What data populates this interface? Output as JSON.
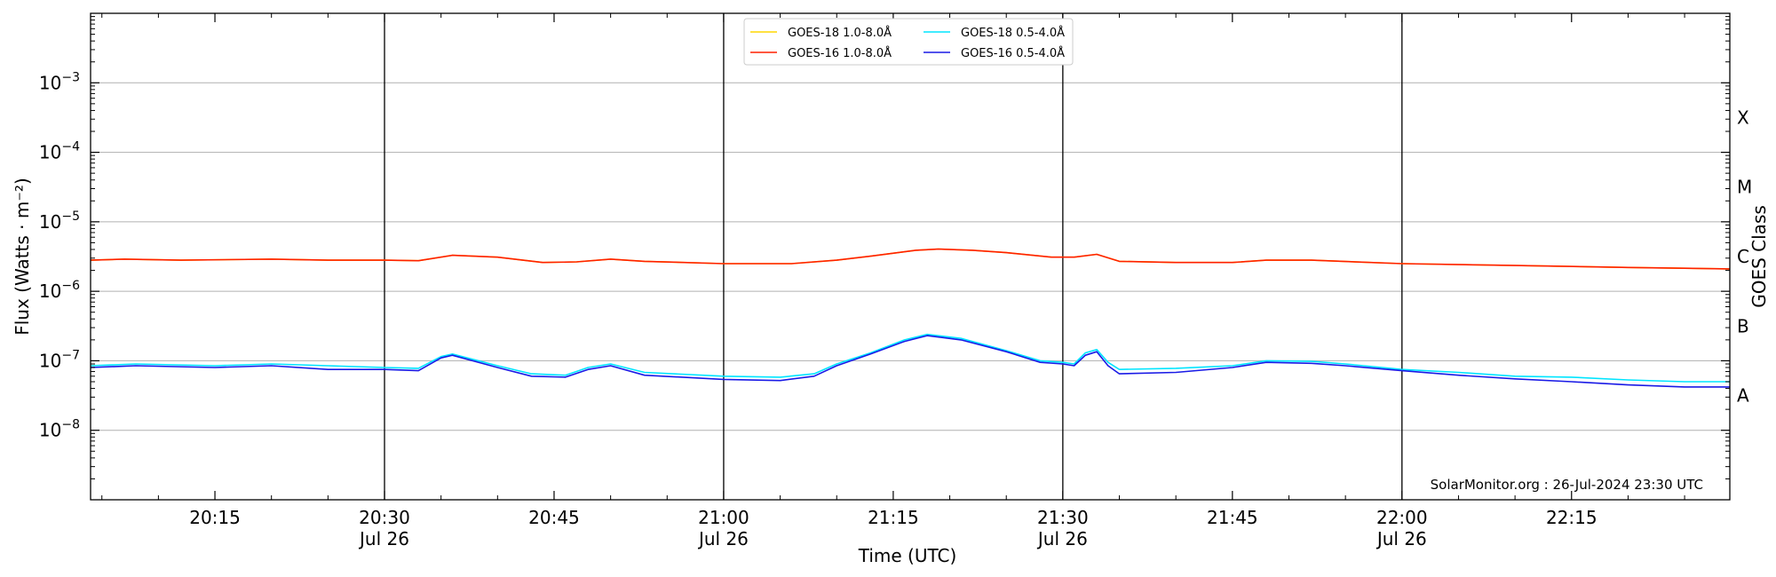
{
  "chart_data": {
    "type": "line",
    "xlabel": "Time (UTC)",
    "ylabel": "Flux (Watts · m⁻²)",
    "y2label": "GOES Class",
    "yscale": "log",
    "ylim": [
      1e-09,
      0.01
    ],
    "xlim": [
      "20:04",
      "22:29"
    ],
    "grid": "horizontal",
    "legend_position": "top-center",
    "credit": "SolarMonitor.org : 26-Jul-2024 23:30 UTC",
    "x_ticks": [
      {
        "time": "20:15",
        "line1": "20:15",
        "line2": ""
      },
      {
        "time": "20:30",
        "line1": "20:30",
        "line2": "Jul 26"
      },
      {
        "time": "20:45",
        "line1": "20:45",
        "line2": ""
      },
      {
        "time": "21:00",
        "line1": "21:00",
        "line2": "Jul 26"
      },
      {
        "time": "21:15",
        "line1": "21:15",
        "line2": ""
      },
      {
        "time": "21:30",
        "line1": "21:30",
        "line2": "Jul 26"
      },
      {
        "time": "21:45",
        "line1": "21:45",
        "line2": ""
      },
      {
        "time": "22:00",
        "line1": "22:00",
        "line2": "Jul 26"
      },
      {
        "time": "22:15",
        "line1": "22:15",
        "line2": ""
      }
    ],
    "vertical_lines": [
      "20:30",
      "21:00",
      "21:30",
      "22:00"
    ],
    "y_ticks": [
      {
        "exp": -8,
        "label": "10",
        "sup": "−8"
      },
      {
        "exp": -7,
        "label": "10",
        "sup": "−7"
      },
      {
        "exp": -6,
        "label": "10",
        "sup": "−6"
      },
      {
        "exp": -5,
        "label": "10",
        "sup": "−5"
      },
      {
        "exp": -4,
        "label": "10",
        "sup": "−4"
      },
      {
        "exp": -3,
        "label": "10",
        "sup": "−3"
      }
    ],
    "goes_classes": [
      {
        "label": "A",
        "exp": -7.5
      },
      {
        "label": "B",
        "exp": -6.5
      },
      {
        "label": "C",
        "exp": -5.5
      },
      {
        "label": "M",
        "exp": -4.5
      },
      {
        "label": "X",
        "exp": -3.5
      }
    ],
    "series": [
      {
        "name": "GOES-18 1.0-8.0Å",
        "color": "#ffd700",
        "points": [
          [
            "20:04",
            2.8e-06
          ],
          [
            "20:07",
            2.9e-06
          ],
          [
            "20:12",
            2.8e-06
          ],
          [
            "20:20",
            2.9e-06
          ],
          [
            "20:25",
            2.8e-06
          ],
          [
            "20:30",
            2.8e-06
          ],
          [
            "20:33",
            2.75e-06
          ],
          [
            "20:36",
            3.3e-06
          ],
          [
            "20:40",
            3.1e-06
          ],
          [
            "20:44",
            2.6e-06
          ],
          [
            "20:47",
            2.65e-06
          ],
          [
            "20:50",
            2.9e-06
          ],
          [
            "20:53",
            2.7e-06
          ],
          [
            "21:00",
            2.5e-06
          ],
          [
            "21:06",
            2.5e-06
          ],
          [
            "21:10",
            2.8e-06
          ],
          [
            "21:13",
            3.2e-06
          ],
          [
            "21:17",
            3.9e-06
          ],
          [
            "21:19",
            4.05e-06
          ],
          [
            "21:22",
            3.9e-06
          ],
          [
            "21:25",
            3.6e-06
          ],
          [
            "21:29",
            3.1e-06
          ],
          [
            "21:31",
            3.1e-06
          ],
          [
            "21:33",
            3.4e-06
          ],
          [
            "21:35",
            2.7e-06
          ],
          [
            "21:40",
            2.6e-06
          ],
          [
            "21:45",
            2.6e-06
          ],
          [
            "21:48",
            2.8e-06
          ],
          [
            "21:52",
            2.8e-06
          ],
          [
            "22:00",
            2.5e-06
          ],
          [
            "22:10",
            2.35e-06
          ],
          [
            "22:20",
            2.2e-06
          ],
          [
            "22:29",
            2.1e-06
          ]
        ]
      },
      {
        "name": "GOES-16 1.0-8.0Å",
        "color": "#ff2000",
        "points": [
          [
            "20:04",
            2.8e-06
          ],
          [
            "20:07",
            2.9e-06
          ],
          [
            "20:12",
            2.8e-06
          ],
          [
            "20:20",
            2.9e-06
          ],
          [
            "20:25",
            2.8e-06
          ],
          [
            "20:30",
            2.8e-06
          ],
          [
            "20:33",
            2.75e-06
          ],
          [
            "20:36",
            3.3e-06
          ],
          [
            "20:40",
            3.1e-06
          ],
          [
            "20:44",
            2.6e-06
          ],
          [
            "20:47",
            2.65e-06
          ],
          [
            "20:50",
            2.9e-06
          ],
          [
            "20:53",
            2.7e-06
          ],
          [
            "21:00",
            2.5e-06
          ],
          [
            "21:06",
            2.5e-06
          ],
          [
            "21:10",
            2.8e-06
          ],
          [
            "21:13",
            3.2e-06
          ],
          [
            "21:17",
            3.9e-06
          ],
          [
            "21:19",
            4.05e-06
          ],
          [
            "21:22",
            3.9e-06
          ],
          [
            "21:25",
            3.6e-06
          ],
          [
            "21:29",
            3.1e-06
          ],
          [
            "21:31",
            3.1e-06
          ],
          [
            "21:33",
            3.4e-06
          ],
          [
            "21:35",
            2.7e-06
          ],
          [
            "21:40",
            2.6e-06
          ],
          [
            "21:45",
            2.6e-06
          ],
          [
            "21:48",
            2.8e-06
          ],
          [
            "21:52",
            2.8e-06
          ],
          [
            "22:00",
            2.5e-06
          ],
          [
            "22:10",
            2.35e-06
          ],
          [
            "22:20",
            2.2e-06
          ],
          [
            "22:29",
            2.1e-06
          ]
        ]
      },
      {
        "name": "GOES-18 0.5-4.0Å",
        "color": "#00e5ff",
        "points": [
          [
            "20:04",
            8.5e-08
          ],
          [
            "20:08",
            9e-08
          ],
          [
            "20:15",
            8.5e-08
          ],
          [
            "20:20",
            9e-08
          ],
          [
            "20:25",
            8.5e-08
          ],
          [
            "20:30",
            8e-08
          ],
          [
            "20:33",
            7.8e-08
          ],
          [
            "20:35",
            1.15e-07
          ],
          [
            "20:36",
            1.25e-07
          ],
          [
            "20:40",
            8.5e-08
          ],
          [
            "20:43",
            6.5e-08
          ],
          [
            "20:46",
            6.2e-08
          ],
          [
            "20:48",
            8e-08
          ],
          [
            "20:50",
            9e-08
          ],
          [
            "20:53",
            6.8e-08
          ],
          [
            "21:00",
            6e-08
          ],
          [
            "21:05",
            5.8e-08
          ],
          [
            "21:08",
            6.5e-08
          ],
          [
            "21:10",
            9e-08
          ],
          [
            "21:13",
            1.3e-07
          ],
          [
            "21:16",
            2e-07
          ],
          [
            "21:18",
            2.4e-07
          ],
          [
            "21:21",
            2.1e-07
          ],
          [
            "21:25",
            1.4e-07
          ],
          [
            "21:28",
            1e-07
          ],
          [
            "21:30",
            9.5e-08
          ],
          [
            "21:31",
            9e-08
          ],
          [
            "21:32",
            1.3e-07
          ],
          [
            "21:33",
            1.45e-07
          ],
          [
            "21:34",
            9.5e-08
          ],
          [
            "21:35",
            7.5e-08
          ],
          [
            "21:40",
            7.8e-08
          ],
          [
            "21:45",
            8.5e-08
          ],
          [
            "21:48",
            1e-07
          ],
          [
            "21:52",
            9.8e-08
          ],
          [
            "21:55",
            9e-08
          ],
          [
            "22:00",
            7.5e-08
          ],
          [
            "22:05",
            6.8e-08
          ],
          [
            "22:10",
            6e-08
          ],
          [
            "22:15",
            5.8e-08
          ],
          [
            "22:20",
            5.3e-08
          ],
          [
            "22:25",
            5e-08
          ],
          [
            "22:29",
            5e-08
          ]
        ]
      },
      {
        "name": "GOES-16 0.5-4.0Å",
        "color": "#1a1ae6",
        "points": [
          [
            "20:04",
            8e-08
          ],
          [
            "20:08",
            8.5e-08
          ],
          [
            "20:15",
            8e-08
          ],
          [
            "20:20",
            8.5e-08
          ],
          [
            "20:25",
            7.5e-08
          ],
          [
            "20:30",
            7.5e-08
          ],
          [
            "20:33",
            7.2e-08
          ],
          [
            "20:35",
            1.1e-07
          ],
          [
            "20:36",
            1.2e-07
          ],
          [
            "20:40",
            8e-08
          ],
          [
            "20:43",
            6e-08
          ],
          [
            "20:46",
            5.8e-08
          ],
          [
            "20:48",
            7.5e-08
          ],
          [
            "20:50",
            8.5e-08
          ],
          [
            "20:53",
            6.2e-08
          ],
          [
            "21:00",
            5.4e-08
          ],
          [
            "21:05",
            5.2e-08
          ],
          [
            "21:08",
            6e-08
          ],
          [
            "21:10",
            8.5e-08
          ],
          [
            "21:13",
            1.25e-07
          ],
          [
            "21:16",
            1.9e-07
          ],
          [
            "21:18",
            2.3e-07
          ],
          [
            "21:21",
            2e-07
          ],
          [
            "21:25",
            1.35e-07
          ],
          [
            "21:28",
            9.5e-08
          ],
          [
            "21:30",
            9e-08
          ],
          [
            "21:31",
            8.5e-08
          ],
          [
            "21:32",
            1.2e-07
          ],
          [
            "21:33",
            1.35e-07
          ],
          [
            "21:34",
            8.5e-08
          ],
          [
            "21:35",
            6.5e-08
          ],
          [
            "21:40",
            6.8e-08
          ],
          [
            "21:45",
            8e-08
          ],
          [
            "21:48",
            9.5e-08
          ],
          [
            "21:52",
            9.2e-08
          ],
          [
            "21:55",
            8.5e-08
          ],
          [
            "22:00",
            7.2e-08
          ],
          [
            "22:05",
            6.2e-08
          ],
          [
            "22:10",
            5.5e-08
          ],
          [
            "22:15",
            5e-08
          ],
          [
            "22:20",
            4.5e-08
          ],
          [
            "22:25",
            4.2e-08
          ],
          [
            "22:29",
            4.2e-08
          ]
        ]
      }
    ]
  }
}
